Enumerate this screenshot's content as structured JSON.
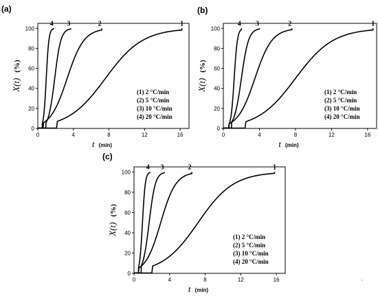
{
  "chart_data": [
    {
      "id": "a",
      "panel_label": "(a)",
      "type": "line",
      "xlabel": {
        "var": "t",
        "unit": "(min)"
      },
      "ylabel": {
        "var": "X(t)",
        "unit": "(%)"
      },
      "xlim": [
        0,
        17
      ],
      "ylim": [
        0,
        105
      ],
      "xticks": [
        0,
        4,
        8,
        12,
        16
      ],
      "yticks": [
        0,
        20,
        40,
        60,
        80,
        100
      ],
      "series": [
        {
          "name": "1",
          "center": 7.6,
          "width": 2.1,
          "start": 2.1,
          "end": 16.2
        },
        {
          "name": "2",
          "center": 3.3,
          "width": 0.95,
          "start": 0.6,
          "end": 7.2
        },
        {
          "name": "3",
          "center": 1.9,
          "width": 0.35,
          "start": 0.9,
          "end": 3.7
        },
        {
          "name": "4",
          "center": 0.95,
          "width": 0.15,
          "start": 0.5,
          "end": 1.8
        }
      ],
      "legend": [
        "(1) 2 °C/min",
        "(2) 5 °C/min",
        "(3) 10 °C/min",
        "(4) 20 °C/min"
      ]
    },
    {
      "id": "b",
      "panel_label": "(b)",
      "type": "line",
      "xlabel": {
        "var": "t",
        "unit": "(min)"
      },
      "ylabel": {
        "var": "X(t)",
        "unit": "(%)"
      },
      "xlim": [
        0,
        17
      ],
      "ylim": [
        0,
        105
      ],
      "xticks": [
        0,
        4,
        8,
        12,
        16
      ],
      "yticks": [
        0,
        20,
        40,
        60,
        80,
        100
      ],
      "series": [
        {
          "name": "1",
          "center": 8.0,
          "width": 2.1,
          "start": 2.4,
          "end": 16.6
        },
        {
          "name": "2",
          "center": 3.5,
          "width": 0.95,
          "start": 0.6,
          "end": 7.6
        },
        {
          "name": "3",
          "center": 2.0,
          "width": 0.4,
          "start": 0.9,
          "end": 4.0
        },
        {
          "name": "4",
          "center": 1.2,
          "width": 0.18,
          "start": 0.6,
          "end": 2.0
        }
      ],
      "legend": [
        "(1) 2 °C/min",
        "(2) 5 °C/min",
        "(3) 10 °C/min",
        "(4) 20 °C/min"
      ]
    },
    {
      "id": "c",
      "panel_label": "(c)",
      "type": "line",
      "xlabel": {
        "var": "t",
        "unit": "(min)"
      },
      "ylabel": {
        "var": "X(t)",
        "unit": "(%)"
      },
      "xlim": [
        0,
        17
      ],
      "ylim": [
        0,
        105
      ],
      "xticks": [
        0,
        4,
        8,
        12,
        16
      ],
      "yticks": [
        0,
        20,
        40,
        60,
        80,
        100
      ],
      "series": [
        {
          "name": "1",
          "center": 7.2,
          "width": 2.0,
          "start": 2.0,
          "end": 15.8
        },
        {
          "name": "2",
          "center": 3.0,
          "width": 0.85,
          "start": 0.5,
          "end": 6.5
        },
        {
          "name": "3",
          "center": 1.7,
          "width": 0.35,
          "start": 0.8,
          "end": 3.4
        },
        {
          "name": "4",
          "center": 0.95,
          "width": 0.16,
          "start": 0.5,
          "end": 1.8
        }
      ],
      "legend": [
        "(1) 2 °C/min",
        "(2) 5 °C/min",
        "(3) 10 °C/min",
        "(4) 20 °C/min"
      ]
    }
  ]
}
